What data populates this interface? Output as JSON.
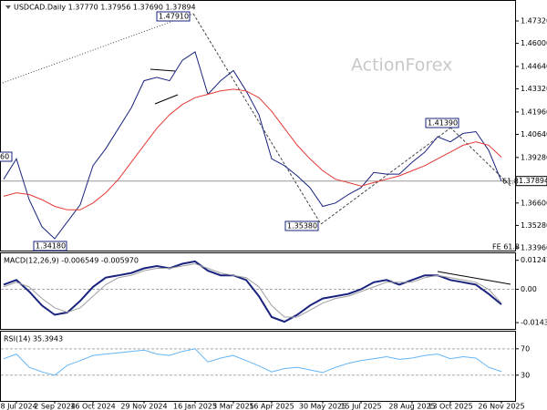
{
  "header": {
    "symbol": "USDCAD.Daily 1.37770 1.37956 1.37690 1.37894"
  },
  "watermark": "ActionForex",
  "chart_data": [
    {
      "type": "line",
      "categories": [
        null,
        "18 Jul 2024",
        null,
        null,
        "2 Sep 2024",
        null,
        null,
        "16 Oct 2024",
        null,
        null,
        null,
        "29 Nov 2024",
        null,
        null,
        null,
        "16 Jan 2025",
        null,
        null,
        "3 Mar 2025",
        null,
        null,
        "16 Apr 2025",
        null,
        null,
        null,
        "30 May 2025",
        null,
        null,
        "15 Jul 2025",
        null,
        null,
        null,
        "28 Aug 2025",
        null,
        null,
        "13 Oct 2025",
        null,
        null,
        null,
        "26 Nov 2025"
      ],
      "series": [
        {
          "color": "#1a237e",
          "values": [
            1.38,
            1.392,
            1.368,
            1.352,
            1.345,
            1.355,
            1.365,
            1.388,
            1.398,
            1.41,
            1.422,
            1.438,
            1.44,
            1.438,
            1.45,
            1.455,
            1.43,
            1.438,
            1.444,
            1.432,
            1.418,
            1.392,
            1.388,
            1.382,
            1.375,
            1.364,
            1.366,
            1.371,
            1.375,
            1.384,
            1.383,
            1.383,
            1.39,
            1.396,
            1.405,
            1.402,
            1.407,
            1.408,
            1.397,
            1.3789
          ]
        },
        {
          "color": "#e53935",
          "values": [
            1.37,
            1.372,
            1.371,
            1.368,
            1.364,
            1.362,
            1.362,
            1.366,
            1.372,
            1.38,
            1.39,
            1.4,
            1.41,
            1.418,
            1.424,
            1.428,
            1.43,
            1.432,
            1.433,
            1.432,
            1.428,
            1.42,
            1.41,
            1.4,
            1.392,
            1.385,
            1.38,
            1.378,
            1.376,
            1.378,
            1.38,
            1.382,
            1.385,
            1.388,
            1.392,
            1.396,
            1.4,
            1.402,
            1.4,
            1.393
          ]
        }
      ],
      "ylim": [
        1.338,
        1.485
      ],
      "yticks": [
        {
          "value": 1.4732,
          "label": "1.47320"
        },
        {
          "value": 1.46,
          "label": "1.46000"
        },
        {
          "value": 1.4464,
          "label": "1.44640"
        },
        {
          "value": 1.4332,
          "label": "1.43320"
        },
        {
          "value": 1.4196,
          "label": "1.41960"
        },
        {
          "value": 1.4064,
          "label": "1.40640"
        },
        {
          "value": 1.3928,
          "label": "1.39280"
        },
        {
          "value": 1.366,
          "label": "1.36600"
        },
        {
          "value": 1.3528,
          "label": "1.35280"
        },
        {
          "value": 1.3396,
          "label": "1.33960"
        }
      ],
      "last_price": {
        "value": 1.37894,
        "label": "1.37894"
      },
      "annotations": [
        "1.47910",
        "1.34180",
        "1.35380",
        "1.41390",
        "60",
        "FE 61.8",
        "61.8"
      ]
    },
    {
      "type": "line",
      "title": "MACD(12,26,9) -0.006549 -0.005970",
      "series": [
        {
          "color": "#1a237e",
          "values": [
            0.002,
            0.004,
            -0.001,
            -0.007,
            -0.011,
            -0.01,
            -0.005,
            0.001,
            0.005,
            0.006,
            0.007,
            0.009,
            0.01,
            0.009,
            0.011,
            0.012,
            0.008,
            0.006,
            0.006,
            0.004,
            -0.003,
            -0.012,
            -0.014,
            -0.011,
            -0.007,
            -0.004,
            -0.003,
            -0.002,
            0.0,
            0.003,
            0.004,
            0.002,
            0.004,
            0.006,
            0.006,
            0.004,
            0.003,
            0.002,
            -0.002,
            -0.006549
          ]
        },
        {
          "color": "#a0a0a0",
          "values": [
            0.001,
            0.003,
            0.001,
            -0.004,
            -0.008,
            -0.01,
            -0.008,
            -0.003,
            0.002,
            0.005,
            0.006,
            0.008,
            0.009,
            0.009,
            0.01,
            0.011,
            0.009,
            0.007,
            0.006,
            0.005,
            0.001,
            -0.007,
            -0.012,
            -0.012,
            -0.009,
            -0.006,
            -0.004,
            -0.003,
            -0.001,
            0.001,
            0.003,
            0.003,
            0.003,
            0.005,
            0.006,
            0.005,
            0.004,
            0.003,
            0.0,
            -0.00597
          ]
        }
      ],
      "ylim": [
        -0.0171,
        0.0155
      ],
      "yticks": [
        0.012472,
        {
          "value": 0,
          "label": "0.00"
        },
        -0.014389
      ]
    },
    {
      "type": "line",
      "title": "RSI(14) 35.3943",
      "series": [
        {
          "color": "#64b5f6",
          "values": [
            55,
            62,
            42,
            35,
            30,
            45,
            52,
            60,
            62,
            64,
            66,
            68,
            62,
            60,
            66,
            70,
            50,
            56,
            60,
            52,
            44,
            35,
            40,
            42,
            38,
            34,
            42,
            48,
            52,
            55,
            58,
            54,
            56,
            60,
            62,
            55,
            58,
            56,
            42,
            35.3943
          ]
        }
      ],
      "ylim": [
        -9,
        96
      ],
      "yticks": [
        70,
        30
      ],
      "grid": true
    }
  ]
}
